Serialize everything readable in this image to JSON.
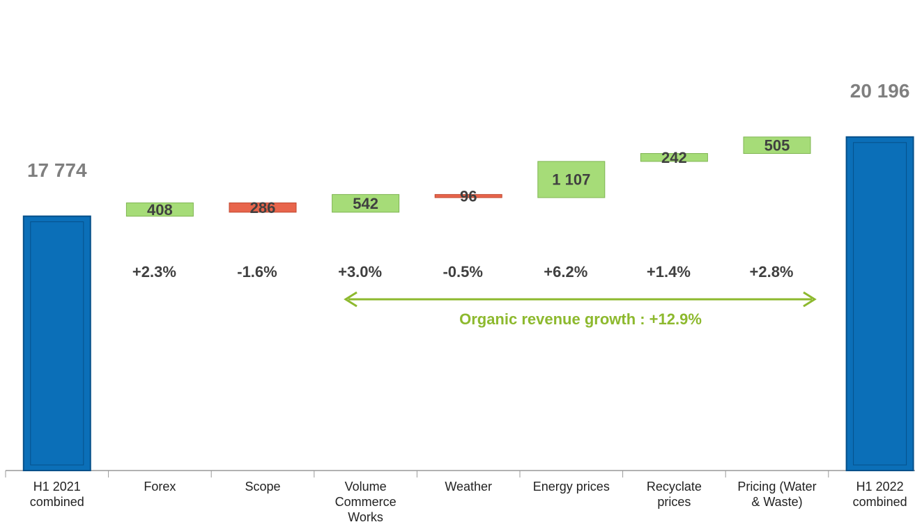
{
  "chart_data": {
    "type": "waterfall",
    "categories": [
      "H1 2021 combined",
      "Forex",
      "Scope",
      "Volume Commerce Works",
      "Weather",
      "Energy prices",
      "Recyclate prices",
      "Pricing (Water & Waste)",
      "H1 2022 combined"
    ],
    "measure": [
      "absolute",
      "relative",
      "relative",
      "relative",
      "relative",
      "relative",
      "relative",
      "relative",
      "absolute"
    ],
    "values": [
      17774,
      408,
      -286,
      542,
      -96,
      1107,
      242,
      505,
      20196
    ],
    "value_labels": [
      "17 774",
      "408",
      "286",
      "542",
      "96",
      "1 107",
      "242",
      "505",
      "20 196"
    ],
    "changes": [
      null,
      2.3,
      -1.6,
      3.0,
      -0.5,
      6.2,
      1.4,
      2.8,
      null
    ],
    "change_labels": [
      null,
      "+2.3%",
      "-1.6%",
      "+3.0%",
      "-0.5%",
      "+6.2%",
      "+1.4%",
      "+2.8%",
      null
    ],
    "annotation": "Organic revenue growth : +12.9%",
    "colors": {
      "total": "#0b6fb8",
      "increase": "#a6dc78",
      "decrease": "#e8654c"
    },
    "ylim": [
      10000,
      21000
    ]
  }
}
